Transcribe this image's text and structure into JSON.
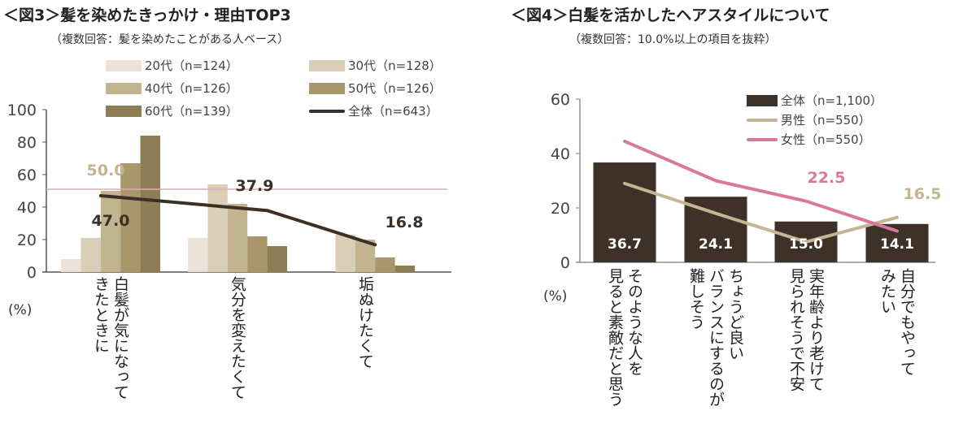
{
  "left": {
    "title": "＜図3＞髪を染めたきっかけ・理由TOP3",
    "subtitle": "（複数回答：髪を染めたことがある人ベース）",
    "unit": "(%)",
    "chart_data": {
      "type": "bar",
      "categories": [
        "白髪が気になって\nきたときに",
        "気分を変えたくて",
        "垢ぬけたくて"
      ],
      "ylim": [
        0,
        100
      ],
      "yticks": [
        "0",
        "20",
        "40",
        "60",
        "80",
        "100"
      ],
      "series": [
        {
          "name": "20代（n=124）",
          "color": "#ece3d8",
          "values": [
            8,
            21,
            0
          ]
        },
        {
          "name": "30代（n=128）",
          "color": "#d9cfb6",
          "values": [
            21,
            54,
            23
          ]
        },
        {
          "name": "40代（n=126）",
          "color": "#c2b48e",
          "values": [
            50,
            42,
            20
          ]
        },
        {
          "name": "50代（n=126）",
          "color": "#a9966a",
          "values": [
            67,
            22,
            9
          ]
        },
        {
          "name": "60代（n=139）",
          "color": "#8c7d55",
          "values": [
            84,
            16,
            4
          ]
        }
      ],
      "line": {
        "name": "全体（n=643）",
        "color": "#3a3026",
        "values": [
          47.0,
          37.9,
          16.8
        ],
        "labels": [
          "47.0",
          "37.9",
          "16.8"
        ]
      },
      "annotation": {
        "value": "50.0",
        "color": "#c2b48e",
        "line_color": "#e0a9b8"
      }
    }
  },
  "right": {
    "title": "＜図4＞白髪を活かしたヘアスタイルについて",
    "subtitle": "（複数回答：10.0%以上の項目を抜粋）",
    "unit": "(%)",
    "chart_data": {
      "type": "bar",
      "categories": [
        "そのような人を\n見ると素敵だと思う",
        "ちょうど良い\nバランスにするのが\n難しそう",
        "実年齢より老けて\n見られそうで不安",
        "自分でもやって\nみたい"
      ],
      "ylim": [
        0,
        60
      ],
      "yticks": [
        "0",
        "20",
        "40",
        "60"
      ],
      "bars": {
        "name": "全体（n=1,100）",
        "color": "#3d3128",
        "values": [
          36.7,
          24.1,
          15.0,
          14.1
        ],
        "labels": [
          "36.7",
          "24.1",
          "15.0",
          "14.1"
        ]
      },
      "lines": [
        {
          "name": "男性（n=550）",
          "color": "#c4b594",
          "values": [
            29,
            18,
            7.5,
            16.5
          ],
          "label": "16.5"
        },
        {
          "name": "女性（n=550）",
          "color": "#d9789c",
          "values": [
            44.5,
            30,
            22.5,
            11.5
          ],
          "label": "22.5"
        }
      ]
    }
  }
}
